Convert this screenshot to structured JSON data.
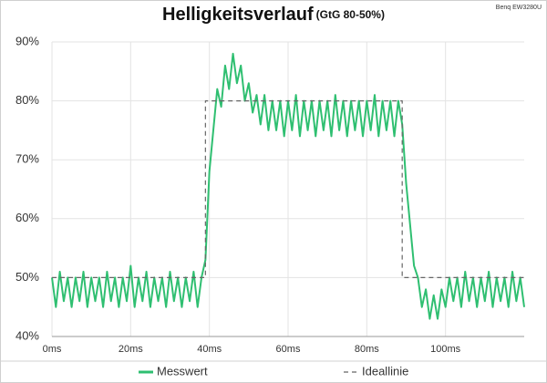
{
  "chart_data": {
    "type": "line",
    "title": "Helligkeitsverlauf",
    "subtitle": "(GtG 80-50%)",
    "annotation": "Benq EW3280U",
    "xlim": [
      0,
      120
    ],
    "xticks": [
      {
        "value": 0,
        "label": "0ms"
      },
      {
        "value": 20,
        "label": "20ms"
      },
      {
        "value": 40,
        "label": "40ms"
      },
      {
        "value": 60,
        "label": "60ms"
      },
      {
        "value": 80,
        "label": "80ms"
      },
      {
        "value": 100,
        "label": "100ms"
      }
    ],
    "ylim": [
      40,
      90
    ],
    "yticks": [
      {
        "value": 40,
        "label": "40%"
      },
      {
        "value": 50,
        "label": "50%"
      },
      {
        "value": 60,
        "label": "60%"
      },
      {
        "value": 70,
        "label": "70%"
      },
      {
        "value": 80,
        "label": "80%"
      },
      {
        "value": 90,
        "label": "90%"
      }
    ],
    "grid": true,
    "legend": "bottom",
    "series": [
      {
        "name": "Messwert",
        "color": "#2fbf71",
        "dashed": false,
        "x": [
          0,
          1,
          2,
          3,
          4,
          5,
          6,
          7,
          8,
          9,
          10,
          11,
          12,
          13,
          14,
          15,
          16,
          17,
          18,
          19,
          20,
          21,
          22,
          23,
          24,
          25,
          26,
          27,
          28,
          29,
          30,
          31,
          32,
          33,
          34,
          35,
          36,
          37,
          38,
          39,
          40,
          41,
          42,
          43,
          44,
          45,
          46,
          47,
          48,
          49,
          50,
          51,
          52,
          53,
          54,
          55,
          56,
          57,
          58,
          59,
          60,
          61,
          62,
          63,
          64,
          65,
          66,
          67,
          68,
          69,
          70,
          71,
          72,
          73,
          74,
          75,
          76,
          77,
          78,
          79,
          80,
          81,
          82,
          83,
          84,
          85,
          86,
          87,
          88,
          89,
          90,
          91,
          92,
          93,
          94,
          95,
          96,
          97,
          98,
          99,
          100,
          101,
          102,
          103,
          104,
          105,
          106,
          107,
          108,
          109,
          110,
          111,
          112,
          113,
          114,
          115,
          116,
          117,
          118,
          119,
          120
        ],
        "values": [
          50,
          45,
          51,
          46,
          50,
          45,
          50,
          46,
          51,
          45,
          50,
          46,
          50,
          45,
          51,
          46,
          50,
          45,
          50,
          46,
          52,
          45,
          50,
          46,
          51,
          45,
          50,
          46,
          50,
          45,
          51,
          46,
          50,
          45,
          50,
          46,
          51,
          45,
          50,
          53,
          68,
          75,
          82,
          79,
          86,
          82,
          88,
          83,
          86,
          80,
          83,
          78,
          81,
          76,
          81,
          75,
          80,
          75,
          80,
          74,
          80,
          75,
          81,
          74,
          80,
          75,
          80,
          74,
          80,
          75,
          80,
          74,
          81,
          75,
          80,
          74,
          80,
          75,
          80,
          74,
          80,
          75,
          81,
          74,
          80,
          75,
          80,
          74,
          80,
          76,
          66,
          59,
          52,
          50,
          45,
          48,
          43,
          47,
          43,
          48,
          45,
          50,
          46,
          50,
          45,
          51,
          46,
          50,
          45,
          50,
          46,
          51,
          45,
          50,
          46,
          50,
          45,
          51,
          46,
          50,
          45
        ]
      },
      {
        "name": "Ideallinie",
        "color": "#666666",
        "dashed": true,
        "x": [
          0,
          39,
          39,
          89,
          89,
          120
        ],
        "values": [
          50,
          50,
          80,
          80,
          50,
          50
        ]
      }
    ]
  }
}
